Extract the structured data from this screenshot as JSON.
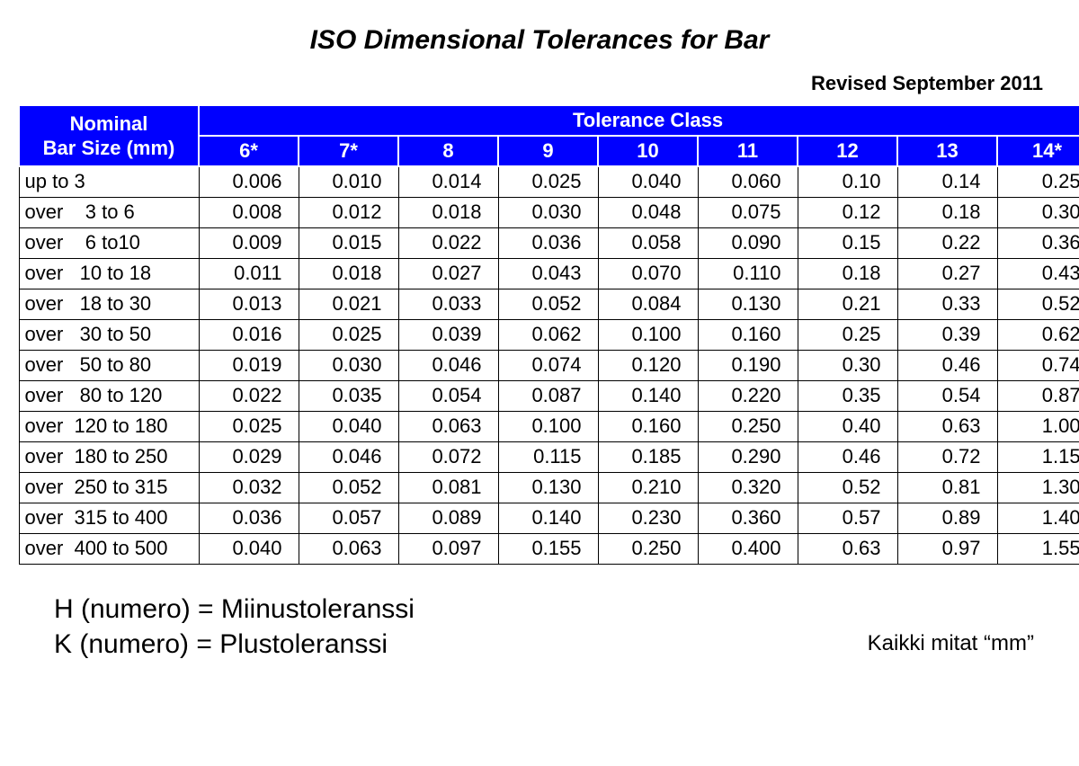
{
  "title": "ISO Dimensional Tolerances for Bar",
  "revised": "Revised September 2011",
  "table": {
    "header_nominal_line1": "Nominal",
    "header_nominal_line2": "Bar Size (mm)",
    "header_tolerance": "Tolerance Class",
    "classes": [
      "6*",
      "7*",
      "8",
      "9",
      "10",
      "11",
      "12",
      "13",
      "14*"
    ],
    "rows": [
      {
        "size": "up to 3",
        "vals": [
          "0.006",
          "0.010",
          "0.014",
          "0.025",
          "0.040",
          "0.060",
          "0.10",
          "0.14",
          "0.25"
        ]
      },
      {
        "size": "over    3 to 6",
        "vals": [
          "0.008",
          "0.012",
          "0.018",
          "0.030",
          "0.048",
          "0.075",
          "0.12",
          "0.18",
          "0.30"
        ]
      },
      {
        "size": "over    6 to10",
        "vals": [
          "0.009",
          "0.015",
          "0.022",
          "0.036",
          "0.058",
          "0.090",
          "0.15",
          "0.22",
          "0.36"
        ]
      },
      {
        "size": "over   10 to 18",
        "vals": [
          "0.011",
          "0.018",
          "0.027",
          "0.043",
          "0.070",
          "0.110",
          "0.18",
          "0.27",
          "0.43"
        ]
      },
      {
        "size": "over   18 to 30",
        "vals": [
          "0.013",
          "0.021",
          "0.033",
          "0.052",
          "0.084",
          "0.130",
          "0.21",
          "0.33",
          "0.52"
        ]
      },
      {
        "size": "over   30 to 50",
        "vals": [
          "0.016",
          "0.025",
          "0.039",
          "0.062",
          "0.100",
          "0.160",
          "0.25",
          "0.39",
          "0.62"
        ]
      },
      {
        "size": "over   50 to 80",
        "vals": [
          "0.019",
          "0.030",
          "0.046",
          "0.074",
          "0.120",
          "0.190",
          "0.30",
          "0.46",
          "0.74"
        ]
      },
      {
        "size": "over   80 to 120",
        "vals": [
          "0.022",
          "0.035",
          "0.054",
          "0.087",
          "0.140",
          "0.220",
          "0.35",
          "0.54",
          "0.87"
        ]
      },
      {
        "size": "over  120 to 180",
        "vals": [
          "0.025",
          "0.040",
          "0.063",
          "0.100",
          "0.160",
          "0.250",
          "0.40",
          "0.63",
          "1.00"
        ]
      },
      {
        "size": "over  180 to 250",
        "vals": [
          "0.029",
          "0.046",
          "0.072",
          "0.115",
          "0.185",
          "0.290",
          "0.46",
          "0.72",
          "1.15"
        ]
      },
      {
        "size": "over  250 to 315",
        "vals": [
          "0.032",
          "0.052",
          "0.081",
          "0.130",
          "0.210",
          "0.320",
          "0.52",
          "0.81",
          "1.30"
        ]
      },
      {
        "size": "over  315 to 400",
        "vals": [
          "0.036",
          "0.057",
          "0.089",
          "0.140",
          "0.230",
          "0.360",
          "0.57",
          "0.89",
          "1.40"
        ]
      },
      {
        "size": "over  400 to 500",
        "vals": [
          "0.040",
          "0.063",
          "0.097",
          "0.155",
          "0.250",
          "0.400",
          "0.63",
          "0.97",
          "1.55"
        ]
      }
    ],
    "header_bg": "#0000ff",
    "header_fg": "#ffffff",
    "cell_border": "#000000",
    "fontsize_header": 22,
    "fontsize_cell": 22
  },
  "footer": {
    "line1": "H (numero) = Miinustoleranssi",
    "line2": "K (numero) = Plustoleranssi",
    "right": "Kaikki mitat “mm”"
  }
}
